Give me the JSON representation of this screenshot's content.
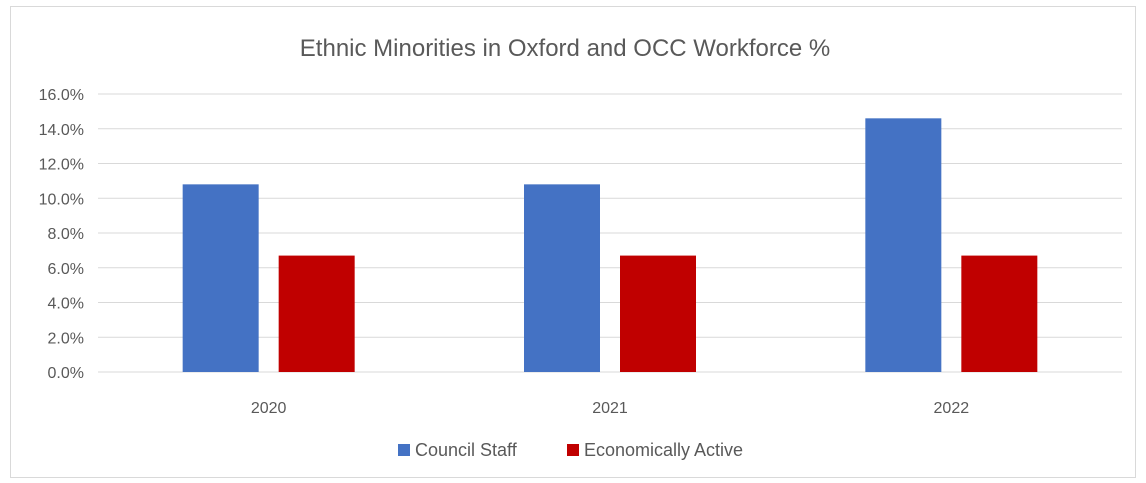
{
  "chart_data": {
    "type": "bar",
    "title": "Ethnic Minorities in Oxford and OCC Workforce %",
    "categories": [
      "2020",
      "2021",
      "2022"
    ],
    "series": [
      {
        "name": "Council Staff",
        "values": [
          10.8,
          10.8,
          14.6
        ],
        "color": "#4472c4"
      },
      {
        "name": "Economically Active",
        "values": [
          6.7,
          6.7,
          6.7
        ],
        "color": "#c00000"
      }
    ],
    "ylim": [
      0,
      16
    ],
    "y_ticks": [
      0,
      2,
      4,
      6,
      8,
      10,
      12,
      14,
      16
    ],
    "y_tick_labels": [
      "0.0%",
      "2.0%",
      "4.0%",
      "6.0%",
      "8.0%",
      "10.0%",
      "12.0%",
      "14.0%",
      "16.0%"
    ],
    "grid": true,
    "legend": "bottom",
    "gridline_color": "#d9d9d9"
  }
}
